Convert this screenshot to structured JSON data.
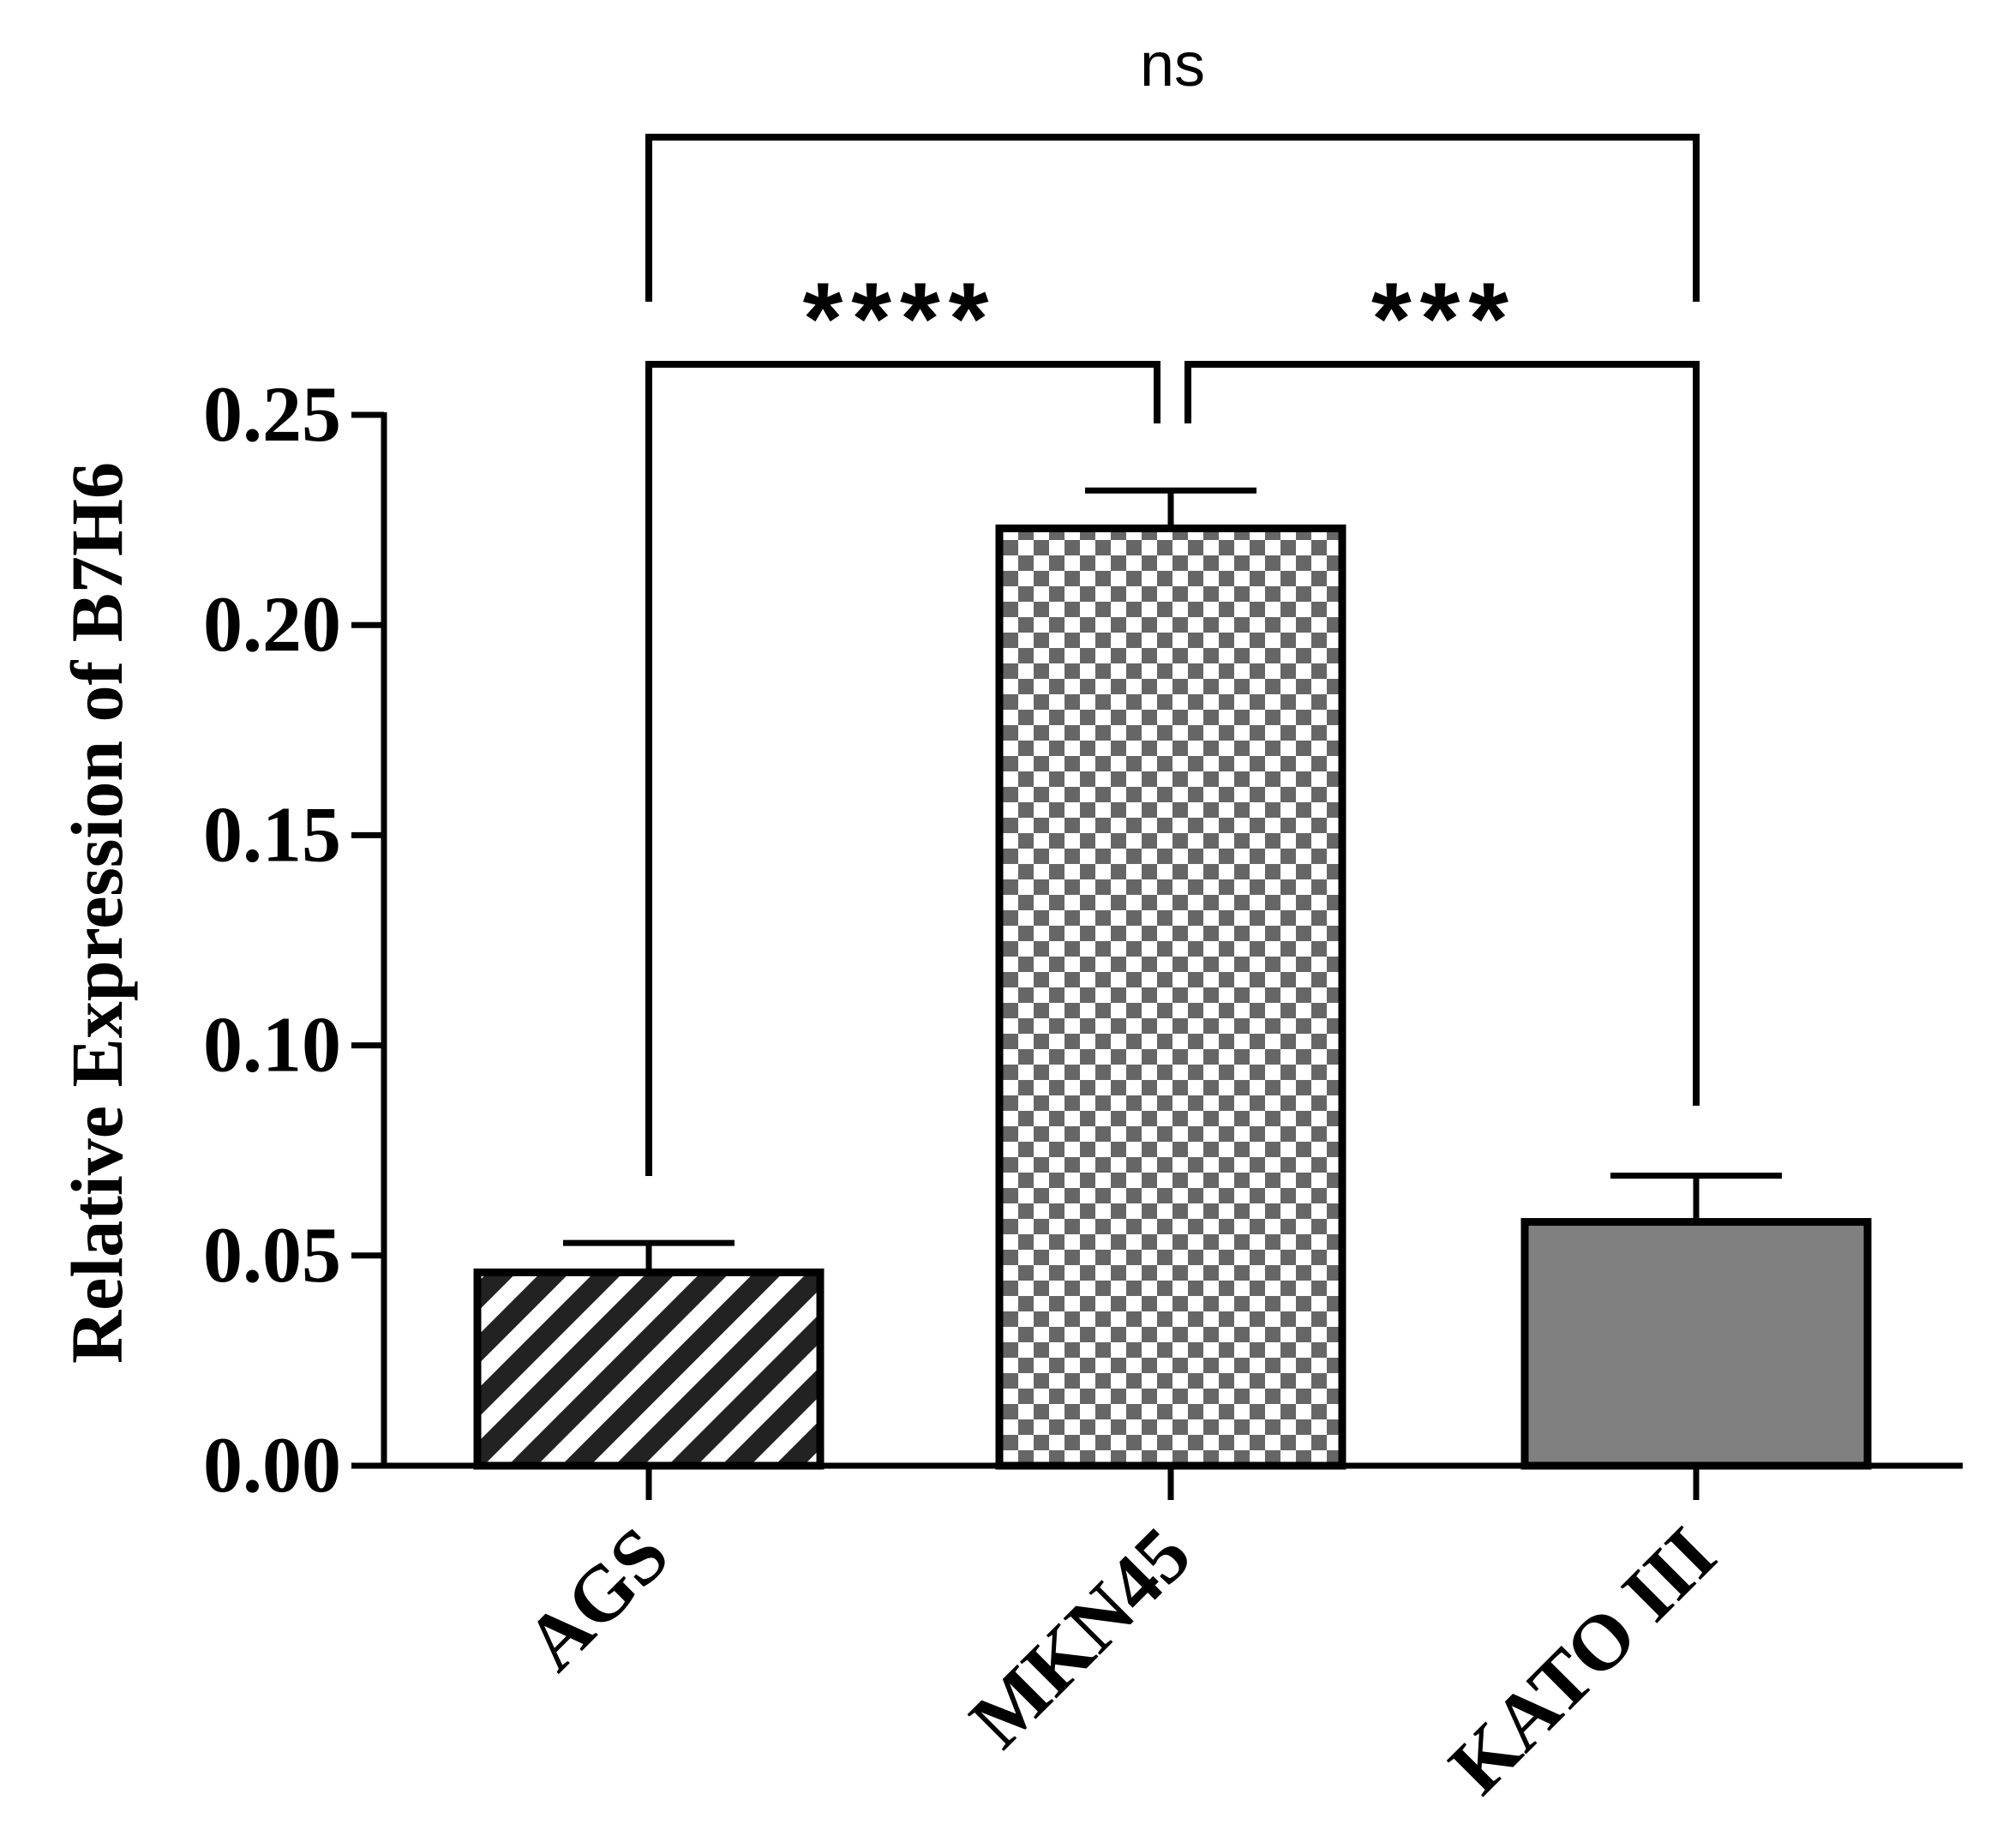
{
  "chart_data": {
    "type": "bar",
    "title": "",
    "xlabel": "",
    "ylabel": "Relative Expression of B7H6",
    "ylim": [
      0,
      0.25
    ],
    "yticks": [
      "0.00",
      "0.05",
      "0.10",
      "0.15",
      "0.20",
      "0.25"
    ],
    "grid": false,
    "categories": [
      "AGS",
      "MKN45",
      "KATO III"
    ],
    "values": [
      0.046,
      0.223,
      0.058
    ],
    "errors": [
      0.007,
      0.009,
      0.011
    ],
    "fills": [
      "diagonal-stripes",
      "checkerboard",
      "solid-gray"
    ],
    "colors": {
      "stripe": "#222222",
      "checker": "#666666",
      "solid": "#808080"
    },
    "comparisons": [
      {
        "groups": [
          "AGS",
          "MKN45"
        ],
        "label": "****"
      },
      {
        "groups": [
          "MKN45",
          "KATO III"
        ],
        "label": "***"
      },
      {
        "groups": [
          "AGS",
          "KATO III"
        ],
        "label": "ns"
      }
    ]
  }
}
